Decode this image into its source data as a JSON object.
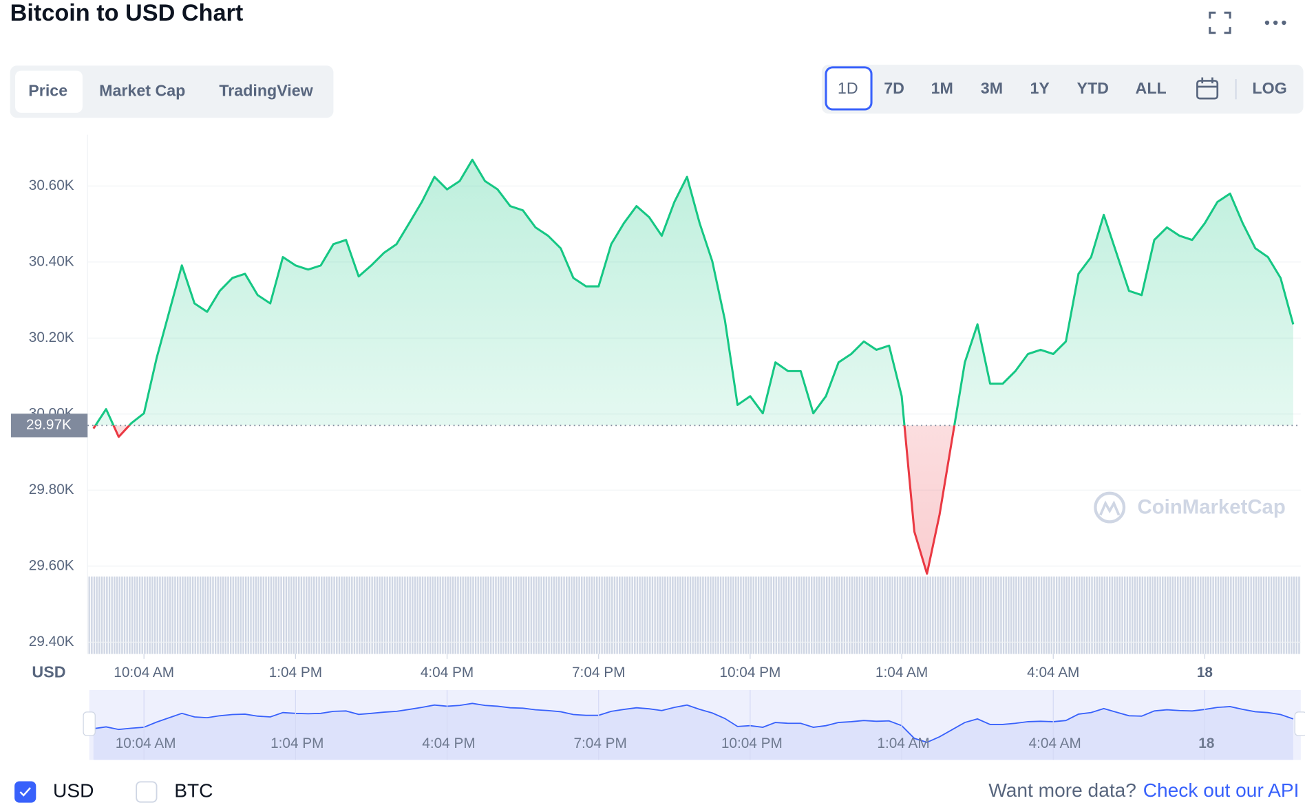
{
  "header": {
    "title": "Bitcoin to USD Chart"
  },
  "tabs": [
    "Price",
    "Market Cap",
    "TradingView"
  ],
  "active_tab": 0,
  "ranges": [
    "1D",
    "7D",
    "1M",
    "3M",
    "1Y",
    "YTD",
    "ALL"
  ],
  "active_range": 0,
  "log_button": "LOG",
  "watermark": "CoinMarketCap",
  "currencies": [
    {
      "label": "USD",
      "checked": true
    },
    {
      "label": "BTC",
      "checked": false
    }
  ],
  "footer": {
    "prompt": "Want more data?",
    "link": "Check out our API"
  },
  "chart_data": {
    "type": "line",
    "axis_label": "USD",
    "categories": [
      null,
      null,
      null,
      null,
      "10:04 AM",
      null,
      null,
      null,
      null,
      null,
      null,
      null,
      null,
      null,
      null,
      null,
      "1:04 PM",
      null,
      null,
      null,
      null,
      null,
      null,
      null,
      null,
      null,
      null,
      null,
      "4:04 PM",
      null,
      null,
      null,
      null,
      null,
      null,
      null,
      null,
      null,
      null,
      null,
      "7:04 PM",
      null,
      null,
      null,
      null,
      null,
      null,
      null,
      null,
      null,
      null,
      null,
      "10:04 PM",
      null,
      null,
      null,
      null,
      null,
      null,
      null,
      null,
      null,
      null,
      null,
      "1:04 AM",
      null,
      null,
      null,
      null,
      null,
      null,
      null,
      null,
      null,
      null,
      null,
      "4:04 AM",
      null,
      null,
      null,
      null,
      null,
      null,
      null,
      null,
      null,
      null,
      null,
      "18",
      null,
      null,
      null,
      null,
      null,
      null,
      null
    ],
    "values": [
      29962,
      30013,
      29940,
      29976,
      30002,
      30147,
      30269,
      30391,
      30291,
      30269,
      30324,
      30358,
      30369,
      30313,
      30291,
      30413,
      30391,
      30380,
      30391,
      30447,
      30458,
      30362,
      30391,
      30424,
      30447,
      30502,
      30558,
      30624,
      30591,
      30613,
      30669,
      30613,
      30591,
      30547,
      30536,
      30491,
      30469,
      30436,
      30358,
      30336,
      30336,
      30447,
      30502,
      30547,
      30518,
      30469,
      30558,
      30624,
      30502,
      30402,
      30247,
      30024,
      30047,
      30002,
      30136,
      30113,
      30113,
      30002,
      30047,
      30136,
      30158,
      30191,
      30169,
      30180,
      30047,
      29691,
      29580,
      29736,
      29936,
      30136,
      30236,
      30080,
      30080,
      30113,
      30158,
      30169,
      30158,
      30191,
      30369,
      30413,
      30524,
      30424,
      30324,
      30313,
      30458,
      30491,
      30469,
      30458,
      30502,
      30558,
      30580,
      30502,
      30436,
      30413,
      30358,
      30236
    ],
    "color": "#16c784",
    "down_color": "#ea3943",
    "navigator_color": "#3861fb",
    "reference": {
      "value": 29970,
      "label": "29.97K"
    },
    "ylim": [
      29369,
      30735
    ],
    "yticks": [
      {
        "value": 29400,
        "label": "29.40K"
      },
      {
        "value": 29600,
        "label": "29.60K"
      },
      {
        "value": 29800,
        "label": "29.80K"
      },
      {
        "value": 30000,
        "label": "30.00K"
      },
      {
        "value": 30200,
        "label": "30.20K"
      },
      {
        "value": 30400,
        "label": "30.40K"
      },
      {
        "value": 30600,
        "label": "30.60K"
      }
    ],
    "grid": true
  }
}
